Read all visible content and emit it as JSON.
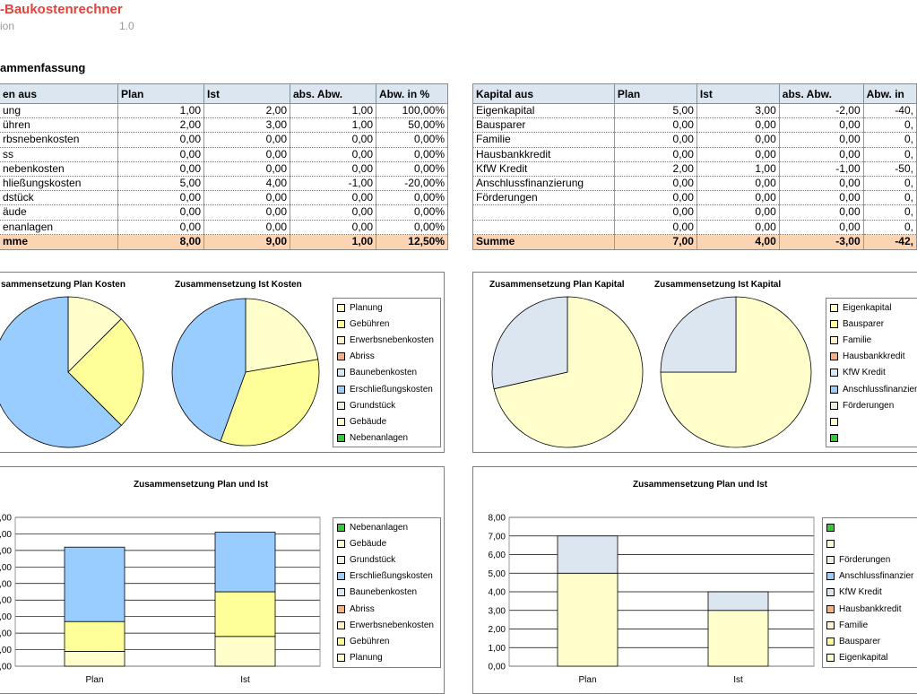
{
  "header": {
    "title": "-Baukostenrechner",
    "version_label": "ion",
    "version_value": "1.0",
    "section_title": "ammenfassung"
  },
  "colors": {
    "header_fill": "#dce6f1",
    "sum_fill": "#fbd4b4",
    "title_red": "#e0443c"
  },
  "kosten_table": {
    "headers": [
      "en aus",
      "Plan",
      "Ist",
      "abs. Abw.",
      "Abw. in %"
    ],
    "rows": [
      [
        "ung",
        "1,00",
        "2,00",
        "1,00",
        "100,00%"
      ],
      [
        "ühren",
        "2,00",
        "3,00",
        "1,00",
        "50,00%"
      ],
      [
        "rbsnebenkosten",
        "0,00",
        "0,00",
        "0,00",
        "0,00%"
      ],
      [
        "ss",
        "0,00",
        "0,00",
        "0,00",
        "0,00%"
      ],
      [
        "nebenkosten",
        "0,00",
        "0,00",
        "0,00",
        "0,00%"
      ],
      [
        "hließungskosten",
        "5,00",
        "4,00",
        "-1,00",
        "-20,00%"
      ],
      [
        "dstück",
        "0,00",
        "0,00",
        "0,00",
        "0,00%"
      ],
      [
        "äude",
        "0,00",
        "0,00",
        "0,00",
        "0,00%"
      ],
      [
        "enanlagen",
        "0,00",
        "0,00",
        "0,00",
        "0,00%"
      ]
    ],
    "sum": [
      "mme",
      "8,00",
      "9,00",
      "1,00",
      "12,50%"
    ]
  },
  "kapital_table": {
    "headers": [
      "Kapital aus",
      "Plan",
      "Ist",
      "abs. Abw.",
      "Abw. in"
    ],
    "rows": [
      [
        "Eigenkapital",
        "5,00",
        "3,00",
        "-2,00",
        "-40,"
      ],
      [
        "Bausparer",
        "0,00",
        "0,00",
        "0,00",
        "0,"
      ],
      [
        "Familie",
        "0,00",
        "0,00",
        "0,00",
        "0,"
      ],
      [
        "Hausbankkredit",
        "0,00",
        "0,00",
        "0,00",
        "0,"
      ],
      [
        "KfW Kredit",
        "2,00",
        "1,00",
        "-1,00",
        "-50,"
      ],
      [
        "Anschlussfinanzierung",
        "0,00",
        "0,00",
        "0,00",
        "0,"
      ],
      [
        "Förderungen",
        "0,00",
        "0,00",
        "0,00",
        "0,"
      ],
      [
        "",
        "0,00",
        "0,00",
        "0,00",
        "0,"
      ],
      [
        "",
        "0,00",
        "0,00",
        "0,00",
        "0,"
      ]
    ],
    "sum": [
      "Summe",
      "7,00",
      "4,00",
      "-3,00",
      "-42,"
    ]
  },
  "legends": {
    "kosten_pie": [
      {
        "label": "Planung",
        "color": "#ffffcc"
      },
      {
        "label": "Gebühren",
        "color": "#ffff99"
      },
      {
        "label": "Erwerbsnebenkosten",
        "color": "#fff2cc"
      },
      {
        "label": "Abriss",
        "color": "#f4b183"
      },
      {
        "label": "Baunebenkosten",
        "color": "#dce6f1"
      },
      {
        "label": "Erschließungskosten",
        "color": "#99ccff"
      },
      {
        "label": "Grundstück",
        "color": "#ebf1de"
      },
      {
        "label": "Gebäude",
        "color": "#ffffcc"
      },
      {
        "label": "Nebenanlagen",
        "color": "#33cc33"
      }
    ],
    "kapital_pie": [
      {
        "label": "Eigenkapital",
        "color": "#ffffcc"
      },
      {
        "label": "Bausparer",
        "color": "#ffff99"
      },
      {
        "label": "Familie",
        "color": "#fff2cc"
      },
      {
        "label": "Hausbankkredit",
        "color": "#f4b183"
      },
      {
        "label": "KfW Kredit",
        "color": "#dce6f1"
      },
      {
        "label": "Anschlussfinanzier",
        "color": "#99ccff"
      },
      {
        "label": "Förderungen",
        "color": "#ebf1de"
      },
      {
        "label": "",
        "color": "#ffffcc"
      },
      {
        "label": "",
        "color": "#33cc33"
      }
    ],
    "kosten_bar": [
      {
        "label": "Nebenanlagen",
        "color": "#33cc33"
      },
      {
        "label": "Gebäude",
        "color": "#ffffcc"
      },
      {
        "label": "Grundstück",
        "color": "#ebf1de"
      },
      {
        "label": "Erschließungskosten",
        "color": "#99ccff"
      },
      {
        "label": "Baunebenkosten",
        "color": "#dce6f1"
      },
      {
        "label": "Abriss",
        "color": "#f4b183"
      },
      {
        "label": "Erwerbsnebenkosten",
        "color": "#fff2cc"
      },
      {
        "label": "Gebühren",
        "color": "#ffff99"
      },
      {
        "label": "Planung",
        "color": "#ffffcc"
      }
    ],
    "kapital_bar": [
      {
        "label": "",
        "color": "#33cc33"
      },
      {
        "label": "",
        "color": "#ffffcc"
      },
      {
        "label": "Förderungen",
        "color": "#ebf1de"
      },
      {
        "label": "Anschlussfinanzier",
        "color": "#99ccff"
      },
      {
        "label": "KfW Kredit",
        "color": "#dce6f1"
      },
      {
        "label": "Hausbankkredit",
        "color": "#f4b183"
      },
      {
        "label": "Familie",
        "color": "#fff2cc"
      },
      {
        "label": "Bausparer",
        "color": "#ffff99"
      },
      {
        "label": "Eigenkapital",
        "color": "#ffffcc"
      }
    ]
  },
  "chart_data": [
    {
      "id": "pie_plan_kosten",
      "type": "pie",
      "title": "sammensetzung Plan Kosten",
      "labels": [
        "Planung",
        "Gebühren",
        "Erschließungskosten"
      ],
      "values": [
        1,
        2,
        5
      ],
      "colors": [
        "#ffffcc",
        "#ffff99",
        "#99ccff"
      ]
    },
    {
      "id": "pie_ist_kosten",
      "type": "pie",
      "title": "Zusammensetzung Ist Kosten",
      "labels": [
        "Planung",
        "Gebühren",
        "Erschließungskosten"
      ],
      "values": [
        2,
        3,
        4
      ],
      "colors": [
        "#ffffcc",
        "#ffff99",
        "#99ccff"
      ]
    },
    {
      "id": "pie_plan_kapital",
      "type": "pie",
      "title": "Zusammensetzung Plan Kapital",
      "labels": [
        "Eigenkapital",
        "KfW Kredit"
      ],
      "values": [
        5,
        2
      ],
      "colors": [
        "#ffffcc",
        "#dce6f1"
      ]
    },
    {
      "id": "pie_ist_kapital",
      "type": "pie",
      "title": "Zusammensetzung Ist Kapital",
      "labels": [
        "Eigenkapital",
        "KfW Kredit"
      ],
      "values": [
        3,
        1
      ],
      "colors": [
        "#ffffcc",
        "#dce6f1"
      ]
    },
    {
      "id": "bar_kosten",
      "type": "bar",
      "stacked": true,
      "title": "Zusammensetzung Plan und Ist",
      "categories": [
        "Plan",
        "Ist"
      ],
      "ylim": [
        0,
        10
      ],
      "yticks": [
        ",00",
        ",00",
        ",00",
        ",00",
        ",00",
        ",00",
        ",00",
        ",00",
        ",00",
        ",00"
      ],
      "series": [
        {
          "name": "Planung",
          "values": [
            1,
            2
          ],
          "color": "#ffffcc"
        },
        {
          "name": "Gebühren",
          "values": [
            2,
            3
          ],
          "color": "#ffff99"
        },
        {
          "name": "Erschließungskosten",
          "values": [
            5,
            4
          ],
          "color": "#99ccff"
        }
      ]
    },
    {
      "id": "bar_kapital",
      "type": "bar",
      "stacked": true,
      "title": "Zusammensetzung Plan und Ist",
      "categories": [
        "Plan",
        "Ist"
      ],
      "ylim": [
        0,
        8
      ],
      "yticks": [
        "0,00",
        "1,00",
        "2,00",
        "3,00",
        "4,00",
        "5,00",
        "6,00",
        "7,00",
        "8,00"
      ],
      "series": [
        {
          "name": "Eigenkapital",
          "values": [
            5,
            3
          ],
          "color": "#ffffcc"
        },
        {
          "name": "KfW Kredit",
          "values": [
            2,
            1
          ],
          "color": "#dce6f1"
        }
      ]
    }
  ]
}
